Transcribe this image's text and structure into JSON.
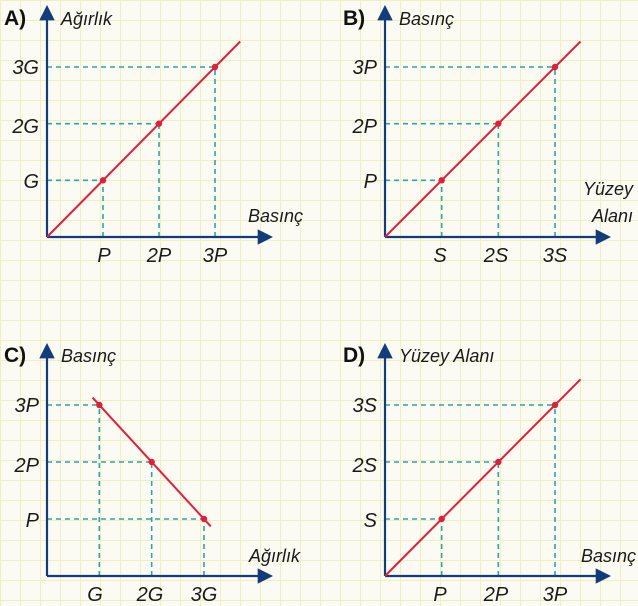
{
  "colors": {
    "axis": "#123d7a",
    "guide": "#2aa6a6",
    "line": "#e0203a",
    "point": "#e0203a",
    "text": "#1a1a1a"
  },
  "chart_data": [
    {
      "type": "line",
      "panel": "A)",
      "xlabel": "Basınç",
      "ylabel": "Ağırlık",
      "x_ticks": [
        "P",
        "2P",
        "3P"
      ],
      "y_ticks": [
        "G",
        "2G",
        "3G"
      ],
      "series": [
        {
          "x": [
            0,
            1,
            2,
            3
          ],
          "y": [
            0,
            1,
            2,
            3
          ]
        }
      ],
      "xlim": [
        0,
        3
      ],
      "ylim": [
        0,
        3
      ]
    },
    {
      "type": "line",
      "panel": "B)",
      "xlabel": "Yüzey Alanı",
      "ylabel": "Basınç",
      "x_ticks": [
        "S",
        "2S",
        "3S"
      ],
      "y_ticks": [
        "P",
        "2P",
        "3P"
      ],
      "series": [
        {
          "x": [
            0,
            1,
            2,
            3
          ],
          "y": [
            0,
            1,
            2,
            3
          ]
        }
      ],
      "xlim": [
        0,
        3
      ],
      "ylim": [
        0,
        3
      ]
    },
    {
      "type": "line",
      "panel": "C)",
      "xlabel": "Ağırlık",
      "ylabel": "Basınç",
      "x_ticks": [
        "G",
        "2G",
        "3G"
      ],
      "y_ticks": [
        "P",
        "2P",
        "3P"
      ],
      "series": [
        {
          "x": [
            1,
            2,
            3
          ],
          "y": [
            3,
            2,
            1
          ]
        }
      ],
      "xlim": [
        0,
        3
      ],
      "ylim": [
        0,
        3
      ]
    },
    {
      "type": "line",
      "panel": "D)",
      "xlabel": "Basınç",
      "ylabel": "Yüzey Alanı",
      "x_ticks": [
        "P",
        "2P",
        "3P"
      ],
      "y_ticks": [
        "S",
        "2S",
        "3S"
      ],
      "series": [
        {
          "x": [
            0,
            1,
            2,
            3
          ],
          "y": [
            0,
            1,
            2,
            3
          ]
        }
      ],
      "xlim": [
        0,
        3
      ],
      "ylim": [
        0,
        3
      ]
    }
  ]
}
